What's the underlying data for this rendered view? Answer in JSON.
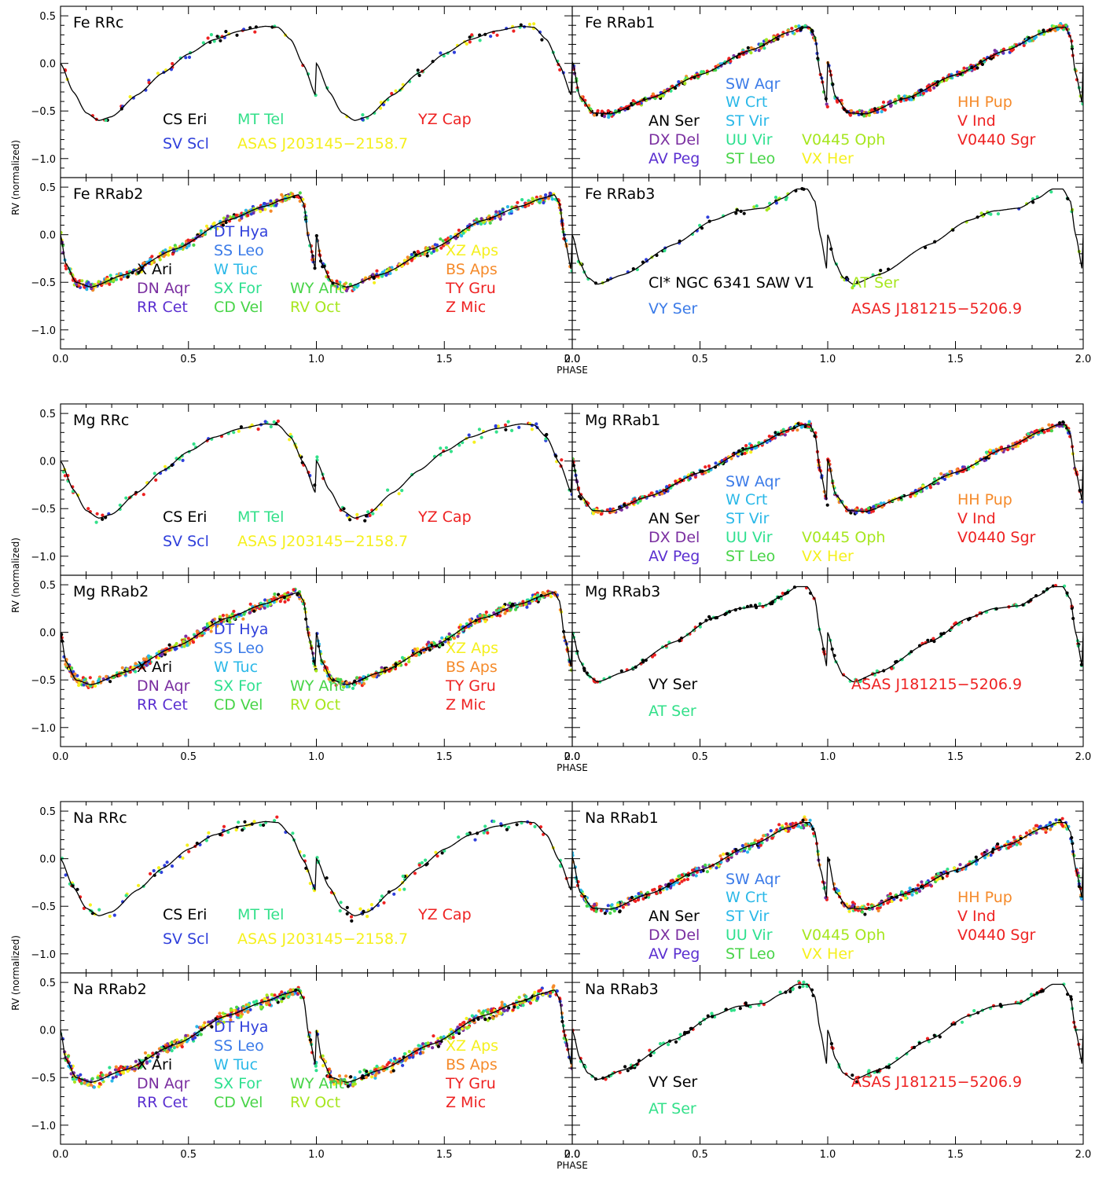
{
  "chart_data": {
    "type": "scatter",
    "ylabel": "RV (normalized)",
    "xlabel": "PHASE",
    "xlim": [
      0.0,
      2.0
    ],
    "ylim": [
      -1.2,
      0.6
    ],
    "xticks": [
      "0.0",
      "0.5",
      "1.0",
      "1.5",
      "2.0"
    ],
    "yticks": [
      "0.5",
      "0.0",
      "−0.5",
      "−1.0"
    ],
    "ytick_values": [
      0.5,
      0.0,
      -0.5,
      -1.0
    ],
    "xtick_values": [
      0.0,
      0.5,
      1.0,
      1.5,
      2.0
    ],
    "colors": {
      "black": "#000000",
      "blue": "#2f3fdb",
      "green": "#33e08a",
      "yellow": "#f5f01e",
      "red": "#ee2222",
      "purple": "#7a2ea0",
      "violet": "#5a2fd0",
      "lightblue": "#3b7be8",
      "cyan": "#2ab8e8",
      "seagreen": "#2ee08f",
      "lime": "#48d448",
      "yellowgreen": "#a6e61e",
      "orange": "#f58a2a"
    },
    "templates": {
      "RRc": {
        "phase": [
          0.0,
          0.05,
          0.1,
          0.15,
          0.2,
          0.3,
          0.4,
          0.5,
          0.6,
          0.7,
          0.8,
          0.85,
          0.9,
          0.95,
          1.0
        ],
        "rv": [
          0.0,
          -0.3,
          -0.52,
          -0.6,
          -0.56,
          -0.33,
          -0.1,
          0.1,
          0.25,
          0.34,
          0.39,
          0.38,
          0.25,
          -0.02,
          -0.35
        ]
      },
      "RRab1": {
        "phase": [
          0.0,
          0.03,
          0.08,
          0.15,
          0.3,
          0.5,
          0.7,
          0.85,
          0.9,
          0.93,
          0.95,
          0.97,
          1.0
        ],
        "rv": [
          0.02,
          -0.35,
          -0.52,
          -0.53,
          -0.37,
          -0.12,
          0.14,
          0.33,
          0.38,
          0.38,
          0.28,
          -0.1,
          -0.45
        ]
      },
      "RRab2": {
        "phase": [
          0.0,
          0.02,
          0.06,
          0.12,
          0.25,
          0.45,
          0.65,
          0.8,
          0.88,
          0.93,
          0.95,
          0.97,
          1.0
        ],
        "rv": [
          0.0,
          -0.3,
          -0.5,
          -0.55,
          -0.42,
          -0.15,
          0.15,
          0.3,
          0.38,
          0.42,
          0.33,
          -0.05,
          -0.4
        ]
      },
      "RRab3": {
        "phase": [
          0.0,
          0.03,
          0.06,
          0.1,
          0.2,
          0.4,
          0.55,
          0.65,
          0.75,
          0.82,
          0.88,
          0.92,
          0.95,
          0.97,
          1.0
        ],
        "rv": [
          0.0,
          -0.3,
          -0.45,
          -0.52,
          -0.42,
          -0.1,
          0.15,
          0.25,
          0.28,
          0.38,
          0.48,
          0.48,
          0.35,
          0.0,
          -0.4
        ]
      }
    },
    "groups": [
      {
        "element": "Fe",
        "panels": [
          {
            "title": "Fe RRc",
            "template": "RRc",
            "scatter": 0.05,
            "n": 110,
            "colors": [
              "black",
              "blue",
              "green",
              "yellow",
              "red"
            ],
            "stars": [
              {
                "name": "CS Eri",
                "color": "black"
              },
              {
                "name": "MT Tel",
                "color": "green"
              },
              {
                "name": "YZ Cap",
                "color": "red"
              },
              {
                "name": "SV Scl",
                "color": "blue"
              },
              {
                "name": "ASAS J203145−2158.7",
                "color": "yellow"
              }
            ]
          },
          {
            "title": "Fe RRab1",
            "template": "RRab1",
            "scatter": 0.035,
            "n": 600,
            "colors": [
              "red",
              "red",
              "red",
              "blue",
              "green",
              "cyan",
              "orange",
              "purple",
              "lime",
              "yellowgreen",
              "black"
            ],
            "stars": [
              {
                "name": "SW Aqr",
                "color": "lightblue"
              },
              {
                "name": "W Crt",
                "color": "cyan"
              },
              {
                "name": "HH Pup",
                "color": "orange"
              },
              {
                "name": "AN Ser",
                "color": "black"
              },
              {
                "name": "ST Vir",
                "color": "cyan"
              },
              {
                "name": "V Ind",
                "color": "red"
              },
              {
                "name": "DX Del",
                "color": "purple"
              },
              {
                "name": "UU Vir",
                "color": "seagreen"
              },
              {
                "name": "V0445 Oph",
                "color": "yellowgreen"
              },
              {
                "name": "V0440 Sgr",
                "color": "red"
              },
              {
                "name": "AV Peg",
                "color": "violet"
              },
              {
                "name": "ST Leo",
                "color": "lime"
              },
              {
                "name": "VX Her",
                "color": "yellow"
              }
            ]
          },
          {
            "title": "Fe RRab2",
            "template": "RRab2",
            "scatter": 0.045,
            "n": 700,
            "colors": [
              "red",
              "red",
              "orange",
              "orange",
              "yellow",
              "yellowgreen",
              "lime",
              "seagreen",
              "blue",
              "purple",
              "black",
              "cyan"
            ],
            "stars": [
              {
                "name": "DT Hya",
                "color": "blue"
              },
              {
                "name": "SS Leo",
                "color": "lightblue"
              },
              {
                "name": "XZ Aps",
                "color": "yellow"
              },
              {
                "name": "X Ari",
                "color": "black"
              },
              {
                "name": "W Tuc",
                "color": "cyan"
              },
              {
                "name": "BS Aps",
                "color": "orange"
              },
              {
                "name": "DN Aqr",
                "color": "purple"
              },
              {
                "name": "SX For",
                "color": "seagreen"
              },
              {
                "name": "WY Ant",
                "color": "lime"
              },
              {
                "name": "TY Gru",
                "color": "red"
              },
              {
                "name": "RR Cet",
                "color": "violet"
              },
              {
                "name": "CD Vel",
                "color": "lime"
              },
              {
                "name": "RV Oct",
                "color": "yellowgreen"
              },
              {
                "name": "Z Mic",
                "color": "red"
              }
            ]
          },
          {
            "title": "Fe RRab3",
            "template": "RRab3",
            "scatter": 0.04,
            "n": 90,
            "colors": [
              "black",
              "black",
              "blue",
              "green",
              "yellowgreen"
            ],
            "stars": [
              {
                "name": "Cl* NGC 6341 SAW V1",
                "color": "black"
              },
              {
                "name": "AT Ser",
                "color": "yellowgreen"
              },
              {
                "name": "VY Ser",
                "color": "lightblue"
              },
              {
                "name": "ASAS J181215−5206.9",
                "color": "red"
              }
            ]
          }
        ]
      },
      {
        "element": "Mg",
        "panels": [
          {
            "title": "Mg RRc",
            "template": "RRc",
            "scatter": 0.06,
            "n": 140,
            "colors": [
              "black",
              "blue",
              "green",
              "green",
              "yellow",
              "red"
            ],
            "stars": [
              {
                "name": "CS Eri",
                "color": "black"
              },
              {
                "name": "MT Tel",
                "color": "green"
              },
              {
                "name": "YZ Cap",
                "color": "red"
              },
              {
                "name": "SV Scl",
                "color": "blue"
              },
              {
                "name": "ASAS J203145−2158.7",
                "color": "yellow"
              }
            ]
          },
          {
            "title": "Mg RRab1",
            "template": "RRab1",
            "scatter": 0.035,
            "n": 600,
            "colors": [
              "red",
              "red",
              "red",
              "blue",
              "green",
              "cyan",
              "orange",
              "purple",
              "lime",
              "yellow",
              "black"
            ],
            "stars": [
              {
                "name": "SW Aqr",
                "color": "lightblue"
              },
              {
                "name": "W Crt",
                "color": "cyan"
              },
              {
                "name": "HH Pup",
                "color": "orange"
              },
              {
                "name": "AN Ser",
                "color": "black"
              },
              {
                "name": "ST Vir",
                "color": "cyan"
              },
              {
                "name": "V Ind",
                "color": "red"
              },
              {
                "name": "DX Del",
                "color": "purple"
              },
              {
                "name": "UU Vir",
                "color": "seagreen"
              },
              {
                "name": "V0445 Oph",
                "color": "yellowgreen"
              },
              {
                "name": "V0440 Sgr",
                "color": "red"
              },
              {
                "name": "AV Peg",
                "color": "violet"
              },
              {
                "name": "ST Leo",
                "color": "lime"
              },
              {
                "name": "VX Her",
                "color": "yellow"
              }
            ]
          },
          {
            "title": "Mg RRab2",
            "template": "RRab2",
            "scatter": 0.05,
            "n": 800,
            "colors": [
              "red",
              "red",
              "orange",
              "orange",
              "yellow",
              "yellowgreen",
              "lime",
              "seagreen",
              "blue",
              "purple",
              "black",
              "cyan"
            ],
            "stars": [
              {
                "name": "DT Hya",
                "color": "blue"
              },
              {
                "name": "SS Leo",
                "color": "lightblue"
              },
              {
                "name": "XZ Aps",
                "color": "yellow"
              },
              {
                "name": "X Ari",
                "color": "black"
              },
              {
                "name": "W Tuc",
                "color": "cyan"
              },
              {
                "name": "BS Aps",
                "color": "orange"
              },
              {
                "name": "DN Aqr",
                "color": "purple"
              },
              {
                "name": "SX For",
                "color": "seagreen"
              },
              {
                "name": "WY Ant",
                "color": "lime"
              },
              {
                "name": "TY Gru",
                "color": "red"
              },
              {
                "name": "RR Cet",
                "color": "violet"
              },
              {
                "name": "CD Vel",
                "color": "lime"
              },
              {
                "name": "RV Oct",
                "color": "yellowgreen"
              },
              {
                "name": "Z Mic",
                "color": "red"
              }
            ]
          },
          {
            "title": "Mg RRab3",
            "template": "RRab3",
            "scatter": 0.025,
            "n": 180,
            "colors": [
              "black",
              "black",
              "green",
              "green",
              "red"
            ],
            "stars": [
              {
                "name": "VY Ser",
                "color": "black"
              },
              {
                "name": "ASAS J181215−5206.9",
                "color": "red"
              },
              {
                "name": "AT Ser",
                "color": "green"
              }
            ]
          }
        ]
      },
      {
        "element": "Na",
        "panels": [
          {
            "title": "Na RRc",
            "template": "RRc",
            "scatter": 0.07,
            "n": 150,
            "colors": [
              "black",
              "blue",
              "green",
              "green",
              "yellow",
              "red"
            ],
            "stars": [
              {
                "name": "CS Eri",
                "color": "black"
              },
              {
                "name": "MT Tel",
                "color": "green"
              },
              {
                "name": "YZ Cap",
                "color": "red"
              },
              {
                "name": "SV Scl",
                "color": "blue"
              },
              {
                "name": "ASAS J203145−2158.7",
                "color": "yellow"
              }
            ]
          },
          {
            "title": "Na RRab1",
            "template": "RRab1",
            "scatter": 0.05,
            "n": 600,
            "colors": [
              "red",
              "red",
              "red",
              "blue",
              "green",
              "cyan",
              "orange",
              "purple",
              "lime",
              "yellow",
              "black"
            ],
            "stars": [
              {
                "name": "SW Aqr",
                "color": "lightblue"
              },
              {
                "name": "W Crt",
                "color": "cyan"
              },
              {
                "name": "HH Pup",
                "color": "orange"
              },
              {
                "name": "AN Ser",
                "color": "black"
              },
              {
                "name": "ST Vir",
                "color": "cyan"
              },
              {
                "name": "V Ind",
                "color": "red"
              },
              {
                "name": "DX Del",
                "color": "purple"
              },
              {
                "name": "UU Vir",
                "color": "seagreen"
              },
              {
                "name": "V0445 Oph",
                "color": "yellowgreen"
              },
              {
                "name": "V0440 Sgr",
                "color": "red"
              },
              {
                "name": "AV Peg",
                "color": "violet"
              },
              {
                "name": "ST Leo",
                "color": "lime"
              },
              {
                "name": "VX Her",
                "color": "yellow"
              }
            ]
          },
          {
            "title": "Na RRab2",
            "template": "RRab2",
            "scatter": 0.06,
            "n": 800,
            "colors": [
              "red",
              "red",
              "orange",
              "orange",
              "yellow",
              "yellowgreen",
              "lime",
              "seagreen",
              "blue",
              "purple",
              "black",
              "cyan"
            ],
            "stars": [
              {
                "name": "DT Hya",
                "color": "blue"
              },
              {
                "name": "SS Leo",
                "color": "lightblue"
              },
              {
                "name": "XZ Aps",
                "color": "yellow"
              },
              {
                "name": "X Ari",
                "color": "black"
              },
              {
                "name": "W Tuc",
                "color": "cyan"
              },
              {
                "name": "BS Aps",
                "color": "orange"
              },
              {
                "name": "DN Aqr",
                "color": "purple"
              },
              {
                "name": "SX For",
                "color": "seagreen"
              },
              {
                "name": "WY Ant",
                "color": "lime"
              },
              {
                "name": "TY Gru",
                "color": "red"
              },
              {
                "name": "RR Cet",
                "color": "violet"
              },
              {
                "name": "CD Vel",
                "color": "lime"
              },
              {
                "name": "RV Oct",
                "color": "yellowgreen"
              },
              {
                "name": "Z Mic",
                "color": "red"
              }
            ]
          },
          {
            "title": "Na RRab3",
            "template": "RRab3",
            "scatter": 0.035,
            "n": 160,
            "colors": [
              "black",
              "black",
              "green",
              "green",
              "red"
            ],
            "stars": [
              {
                "name": "VY Ser",
                "color": "black"
              },
              {
                "name": "ASAS J181215−5206.9",
                "color": "red"
              },
              {
                "name": "AT Ser",
                "color": "green"
              }
            ]
          }
        ]
      }
    ]
  }
}
